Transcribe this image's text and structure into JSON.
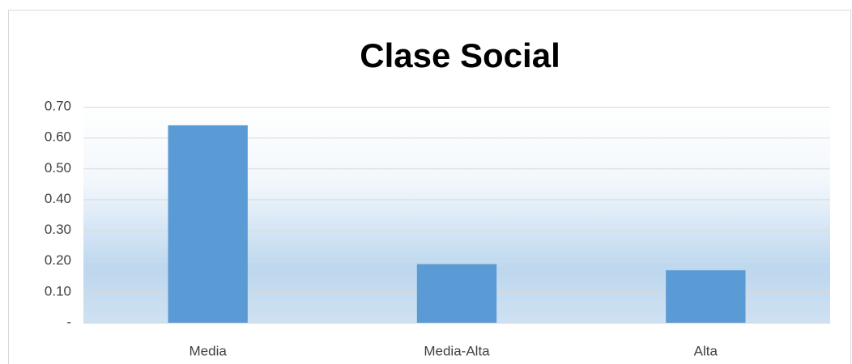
{
  "chart_data": {
    "type": "bar",
    "title": "Clase Social",
    "categories": [
      "Media",
      "Media-Alta",
      "Alta"
    ],
    "values": [
      0.64,
      0.19,
      0.17
    ],
    "color": "#5b9bd5",
    "ylim": [
      0,
      0.7
    ],
    "yticks": [
      {
        "value": 0,
        "label": "-"
      },
      {
        "value": 0.1,
        "label": "0.10"
      },
      {
        "value": 0.2,
        "label": "0.20"
      },
      {
        "value": 0.3,
        "label": "0.30"
      },
      {
        "value": 0.4,
        "label": "0.40"
      },
      {
        "value": 0.5,
        "label": "0.50"
      },
      {
        "value": 0.6,
        "label": "0.60"
      },
      {
        "value": 0.7,
        "label": "0.70"
      }
    ],
    "grid": true
  }
}
